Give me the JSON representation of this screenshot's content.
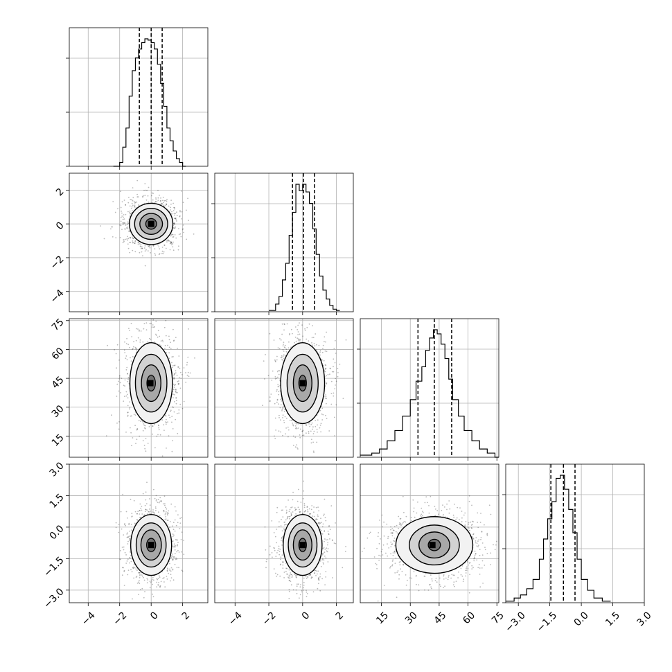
{
  "chart_data": {
    "type": "corner",
    "grid": true,
    "parameters": [
      {
        "axis_range": [
          -5.2,
          3.6
        ],
        "ticks": [
          -4,
          -2,
          0,
          2
        ],
        "tick_labels": [
          "−4",
          "−2",
          "0",
          "2"
        ],
        "quantiles": [
          -0.75,
          0.0,
          0.7
        ]
      },
      {
        "axis_range": [
          -5.2,
          3.0
        ],
        "ticks": [
          -4,
          -2,
          0,
          2
        ],
        "tick_labels": [
          "−4",
          "−2",
          "0",
          "2"
        ],
        "quantiles": [
          -0.6,
          0.05,
          0.7
        ]
      },
      {
        "axis_range": [
          4,
          76
        ],
        "ticks": [
          15,
          30,
          45,
          60,
          75
        ],
        "tick_labels": [
          "15",
          "30",
          "45",
          "60",
          "75"
        ],
        "quantiles": [
          34,
          42.5,
          51.5
        ]
      },
      {
        "axis_range": [
          -3.6,
          3.0
        ],
        "ticks": [
          -3.0,
          -1.5,
          0.0,
          1.5,
          3.0
        ],
        "tick_labels": [
          "−3.0",
          "−1.5",
          "0.0",
          "1.5",
          "3.0"
        ],
        "quantiles": [
          -1.45,
          -0.85,
          -0.3
        ]
      }
    ],
    "histograms": [
      {
        "bin_edges": [
          -2.4,
          -2.0,
          -1.8,
          -1.6,
          -1.4,
          -1.2,
          -1.0,
          -0.8,
          -0.6,
          -0.4,
          -0.2,
          0.0,
          0.2,
          0.4,
          0.6,
          0.8,
          1.0,
          1.2,
          1.4,
          1.6,
          1.8,
          2.0,
          2.2
        ],
        "counts": [
          0,
          3,
          15,
          30,
          55,
          75,
          85,
          92,
          97,
          100,
          99,
          97,
          92,
          80,
          65,
          47,
          30,
          20,
          12,
          6,
          3,
          0
        ]
      },
      {
        "bin_edges": [
          -2.0,
          -1.6,
          -1.4,
          -1.2,
          -1.0,
          -0.8,
          -0.6,
          -0.4,
          -0.2,
          0.0,
          0.2,
          0.4,
          0.6,
          0.8,
          1.0,
          1.2,
          1.4,
          1.6,
          1.8,
          2.0,
          2.2
        ],
        "counts": [
          1,
          6,
          12,
          25,
          38,
          60,
          78,
          100,
          95,
          100,
          94,
          85,
          65,
          45,
          28,
          17,
          10,
          5,
          2,
          1
        ]
      },
      {
        "bin_edges": [
          4,
          10,
          14,
          18,
          22,
          26,
          30,
          33,
          36,
          38,
          40,
          42,
          44,
          46,
          48,
          50,
          52,
          55,
          58,
          62,
          66,
          70,
          74,
          76
        ],
        "counts": [
          1,
          2,
          4,
          8,
          13,
          20,
          28,
          37,
          44,
          52,
          58,
          62,
          60,
          55,
          48,
          38,
          28,
          20,
          13,
          8,
          4,
          2,
          0
        ]
      },
      {
        "bin_edges": [
          -3.6,
          -3.2,
          -2.9,
          -2.6,
          -2.3,
          -2.0,
          -1.8,
          -1.6,
          -1.4,
          -1.2,
          -1.0,
          -0.8,
          -0.6,
          -0.4,
          -0.2,
          0.0,
          0.3,
          0.6,
          1.0,
          1.4
        ],
        "counts": [
          1,
          3,
          5,
          9,
          15,
          28,
          41,
          54,
          65,
          80,
          82,
          73,
          60,
          45,
          28,
          15,
          8,
          3,
          1
        ]
      }
    ],
    "pairs": [
      {
        "x_param": 0,
        "y_param": 1,
        "center": [
          0.0,
          0.0
        ],
        "contour_radii": [
          [
            0.38,
            0.35
          ],
          [
            0.72,
            0.62
          ],
          [
            1.05,
            0.92
          ],
          [
            1.38,
            1.22
          ]
        ],
        "density_core": [
          0.0,
          0.0
        ]
      },
      {
        "x_param": 0,
        "y_param": 2,
        "center": [
          0.0,
          42.5
        ],
        "contour_radii": [
          [
            0.3,
            4.5
          ],
          [
            0.62,
            9.5
          ],
          [
            1.0,
            15
          ],
          [
            1.35,
            21
          ]
        ],
        "density_core": [
          -0.05,
          42.5
        ]
      },
      {
        "x_param": 1,
        "y_param": 2,
        "center": [
          0.0,
          42.5
        ],
        "contour_radii": [
          [
            0.25,
            4.5
          ],
          [
            0.55,
            9.5
          ],
          [
            0.92,
            15
          ],
          [
            1.3,
            21
          ]
        ],
        "density_core": [
          0.0,
          42.5
        ]
      },
      {
        "x_param": 0,
        "y_param": 3,
        "center": [
          0.0,
          -0.85
        ],
        "contour_radii": [
          [
            0.32,
            0.35
          ],
          [
            0.65,
            0.72
          ],
          [
            0.95,
            1.05
          ],
          [
            1.3,
            1.45
          ]
        ],
        "density_core": [
          0.0,
          -0.85
        ]
      },
      {
        "x_param": 1,
        "y_param": 3,
        "center": [
          0.0,
          -0.85
        ],
        "contour_radii": [
          [
            0.25,
            0.35
          ],
          [
            0.55,
            0.72
          ],
          [
            0.85,
            1.05
          ],
          [
            1.15,
            1.45
          ]
        ],
        "density_core": [
          0.0,
          -0.85
        ]
      },
      {
        "x_param": 2,
        "y_param": 3,
        "center": [
          42.5,
          -0.85
        ],
        "contour_radii": [
          [
            3.5,
            0.3
          ],
          [
            8,
            0.62
          ],
          [
            13,
            0.95
          ],
          [
            20,
            1.35
          ]
        ],
        "density_core": [
          41.5,
          -0.85
        ]
      }
    ]
  }
}
